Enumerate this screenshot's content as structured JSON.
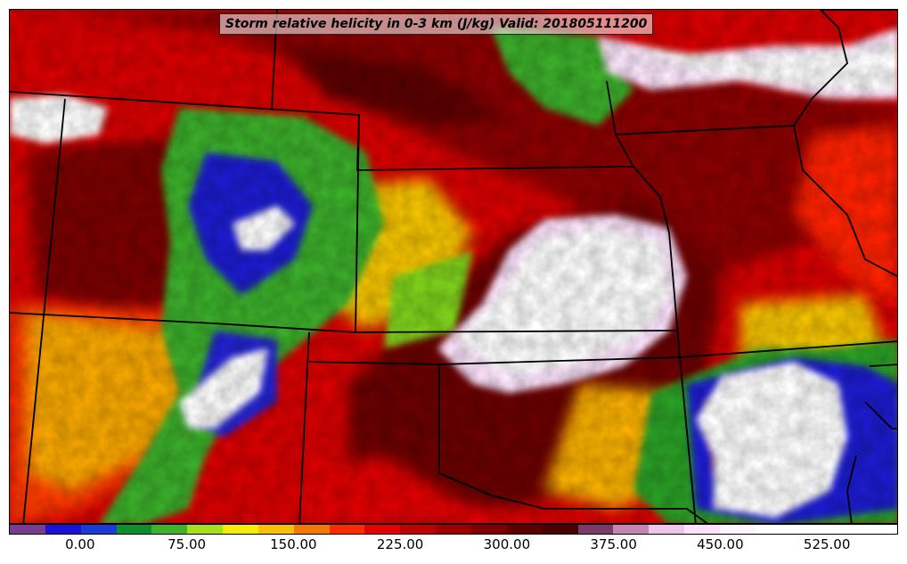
{
  "title": "Storm relative helicity in 0-3 km (J/kg) Valid: 201805111200",
  "colorbar": {
    "colors": [
      "#7b3b91",
      "#1d10d6",
      "#1c3bd6",
      "#0d8f2a",
      "#3fb42a",
      "#a6e01a",
      "#f5ec00",
      "#f8c100",
      "#f27a00",
      "#ff2a00",
      "#e60000",
      "#bf0000",
      "#9e0000",
      "#7f0000",
      "#5e0000",
      "#4a0000",
      "#7a3a6a",
      "#c785b4",
      "#f0c4ec",
      "#fde2fd",
      "#fff4ff",
      "#ffffff",
      "#ffffff",
      "#ffffff",
      "#ffffff"
    ],
    "ticks": [
      {
        "value": 0,
        "label": "0.00"
      },
      {
        "value": 75,
        "label": "75.00"
      },
      {
        "value": 150,
        "label": "150.00"
      },
      {
        "value": 225,
        "label": "225.00"
      },
      {
        "value": 300,
        "label": "300.00"
      },
      {
        "value": 375,
        "label": "375.00"
      },
      {
        "value": 450,
        "label": "450.00"
      },
      {
        "value": 525,
        "label": "525.00"
      }
    ],
    "min": -50,
    "max": 575
  }
}
